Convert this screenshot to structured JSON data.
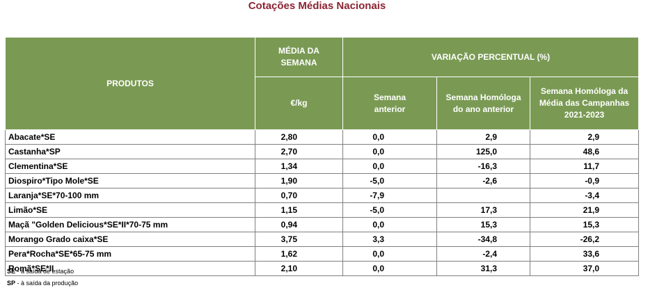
{
  "title": "Cotações Médias Nacionais",
  "header": {
    "produtos": "PRODUTOS",
    "media_line1": "MÉDIA DA",
    "media_line2": "SEMANA",
    "unit": "€/kg",
    "variacao": "VARIAÇÃO PERCENTUAL (%)",
    "sem_ant_1": "Semana",
    "sem_ant_2": "anterior",
    "sem_hom_1": "Semana Homóloga",
    "sem_hom_2": "do ano anterior",
    "sem_camp_1": "Semana Homóloga da",
    "sem_camp_2": "Média das Campanhas",
    "sem_camp_3": "2021-2023"
  },
  "rows": [
    {
      "produto": "Abacate*SE",
      "media": "2,80",
      "sem_ant": "0,0",
      "sem_hom": "2,9",
      "camp": "2,9"
    },
    {
      "produto": "Castanha*SP",
      "media": "2,70",
      "sem_ant": "0,0",
      "sem_hom": "125,0",
      "camp": "48,6"
    },
    {
      "produto": "Clementina*SE",
      "media": "1,34",
      "sem_ant": "0,0",
      "sem_hom": "-16,3",
      "camp": "11,7"
    },
    {
      "produto": "Diospiro*Tipo Mole*SE",
      "media": "1,90",
      "sem_ant": "-5,0",
      "sem_hom": "-2,6",
      "camp": "-0,9"
    },
    {
      "produto": "Laranja*SE*70-100 mm",
      "media": "0,70",
      "sem_ant": "-7,9",
      "sem_hom": "",
      "camp": "-3,4"
    },
    {
      "produto": "Limão*SE",
      "media": "1,15",
      "sem_ant": "-5,0",
      "sem_hom": "17,3",
      "camp": "21,9"
    },
    {
      "produto": "Maçã \"Golden Delicious*SE*II*70-75 mm",
      "media": "0,94",
      "sem_ant": "0,0",
      "sem_hom": "15,3",
      "camp": "15,3"
    },
    {
      "produto": "Morango Grado caixa*SE",
      "media": "3,75",
      "sem_ant": "3,3",
      "sem_hom": "-34,8",
      "camp": "-26,2"
    },
    {
      "produto": "Pera*Rocha*SE*65-75 mm",
      "media": "1,62",
      "sem_ant": "0,0",
      "sem_hom": "-2,4",
      "camp": "33,6"
    },
    {
      "produto": "Romã*SE*II",
      "media": "2,10",
      "sem_ant": "0,0",
      "sem_hom": "31,3",
      "camp": "37,0"
    }
  ],
  "notes": [
    {
      "abbr": "SE",
      "text": " - à saída de estação"
    },
    {
      "abbr": "SP",
      "text": " - à saída da produção"
    }
  ]
}
